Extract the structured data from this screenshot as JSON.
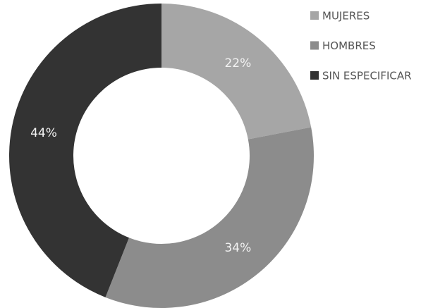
{
  "chart_data": {
    "type": "donut",
    "categories": [
      "MUJERES",
      "HOMBRES",
      "SIN ESPECIFICAR"
    ],
    "values": [
      22,
      34,
      44
    ],
    "value_labels": [
      "22%",
      "34%",
      "44%"
    ],
    "colors": [
      "#a6a6a6",
      "#8c8c8c",
      "#333333"
    ],
    "legend": "top-right"
  }
}
